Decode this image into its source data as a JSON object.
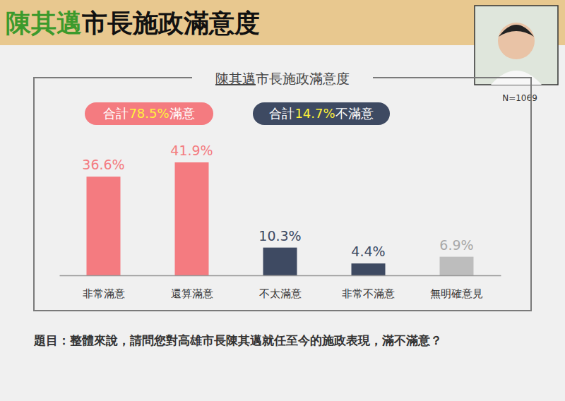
{
  "header": {
    "title_parts": [
      "陳其邁",
      "市長施政滿意度"
    ],
    "sample": "N=1069"
  },
  "chart_data": {
    "type": "bar",
    "title": "陳其邁市長施政滿意度",
    "annotations": [
      {
        "before": "合計",
        "highlight": "78.5%",
        "after": "滿意"
      },
      {
        "before": "合計",
        "highlight": "14.7%",
        "after": "不滿意"
      }
    ],
    "categories": [
      "非常滿意",
      "還算滿意",
      "不太滿意",
      "非常不滿意",
      "無明確意見"
    ],
    "values": [
      36.6,
      41.9,
      10.3,
      4.4,
      6.9
    ],
    "value_labels": [
      "36.6%",
      "41.9%",
      "10.3%",
      "4.4%",
      "6.9%"
    ],
    "colors": [
      "#f47b80",
      "#f47b80",
      "#3e4a62",
      "#3e4a62",
      "#bdbdbd"
    ],
    "data_labels": true,
    "tick_labels": "x"
  },
  "footer": {
    "question": "題目：整體來說，請問您對高雄市長陳其邁就任至今的施政表現，滿不滿意？"
  }
}
